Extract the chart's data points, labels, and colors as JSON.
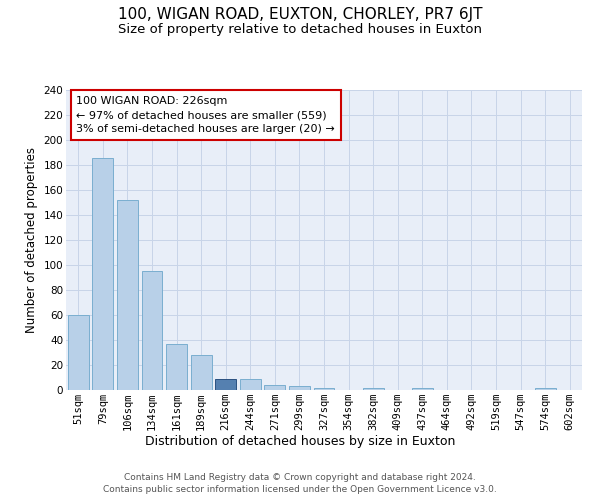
{
  "title1": "100, WIGAN ROAD, EUXTON, CHORLEY, PR7 6JT",
  "title2": "Size of property relative to detached houses in Euxton",
  "xlabel": "Distribution of detached houses by size in Euxton",
  "ylabel": "Number of detached properties",
  "categories": [
    "51sqm",
    "79sqm",
    "106sqm",
    "134sqm",
    "161sqm",
    "189sqm",
    "216sqm",
    "244sqm",
    "271sqm",
    "299sqm",
    "327sqm",
    "354sqm",
    "382sqm",
    "409sqm",
    "437sqm",
    "464sqm",
    "492sqm",
    "519sqm",
    "547sqm",
    "574sqm",
    "602sqm"
  ],
  "values": [
    60,
    186,
    152,
    95,
    37,
    28,
    9,
    9,
    4,
    3,
    2,
    0,
    2,
    0,
    2,
    0,
    0,
    0,
    0,
    2,
    0
  ],
  "bar_color": "#b8d0e8",
  "bar_edge_color": "#7aaed0",
  "highlight_index": 6,
  "highlight_color": "#5580b0",
  "highlight_edge_color": "#2a5080",
  "annotation_text": "100 WIGAN ROAD: 226sqm\n← 97% of detached houses are smaller (559)\n3% of semi-detached houses are larger (20) →",
  "annotation_box_color": "#ffffff",
  "annotation_box_edge": "#cc0000",
  "ylim": [
    0,
    240
  ],
  "yticks": [
    0,
    20,
    40,
    60,
    80,
    100,
    120,
    140,
    160,
    180,
    200,
    220,
    240
  ],
  "footnote1": "Contains HM Land Registry data © Crown copyright and database right 2024.",
  "footnote2": "Contains public sector information licensed under the Open Government Licence v3.0.",
  "bg_color": "#ffffff",
  "plot_bg_color": "#e8eef8",
  "grid_color": "#c8d4e8",
  "title1_fontsize": 11,
  "title2_fontsize": 9.5,
  "xlabel_fontsize": 9,
  "ylabel_fontsize": 8.5,
  "tick_fontsize": 7.5,
  "annot_fontsize": 8
}
